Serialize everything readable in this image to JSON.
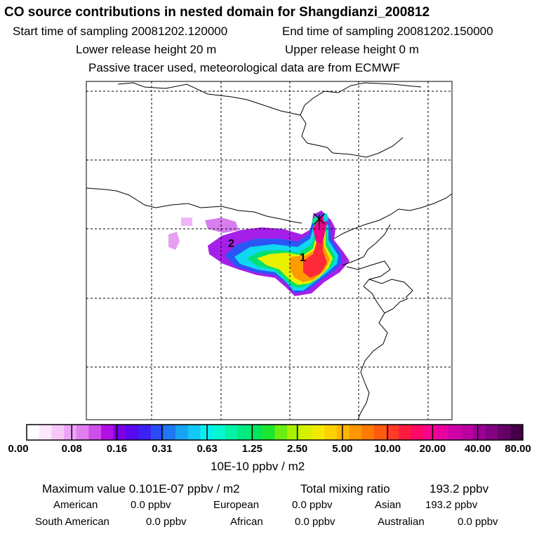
{
  "header": {
    "title": "CO  source contributions in nested domain for Shangdianzi_200812",
    "start_label": "Start time of sampling 20081202.120000",
    "end_label": "End time of sampling 20081202.150000",
    "lower_label": "Lower release height   20 m",
    "upper_label": "Upper release height    0 m",
    "tracer_note": "Passive tracer used, meteorological data are from ECMWF"
  },
  "map": {
    "markers": [
      "1",
      "2"
    ],
    "station_symbol": "x-cross-icon"
  },
  "colorbar": {
    "tick_labels": [
      "0.00",
      "0.08",
      "0.16",
      "0.31",
      "0.63",
      "1.25",
      "2.50",
      "5.00",
      "10.00",
      "20.00",
      "40.00",
      "80.00"
    ],
    "unit": "10E-10 ppbv / m2",
    "colors": [
      "#ffffff",
      "#fde8fd",
      "#f6c8f8",
      "#eda4f4",
      "#e07ef0",
      "#cf4de8",
      "#b20ee6",
      "#7a00e6",
      "#5a08f2",
      "#3c20f5",
      "#2b4cf5",
      "#1e78f5",
      "#18a4f5",
      "#12c8f5",
      "#08eef0",
      "#05f8cf",
      "#02f2a8",
      "#00eb80",
      "#00e55a",
      "#1ee52e",
      "#6aee10",
      "#a8f000",
      "#d6f000",
      "#f2e800",
      "#ffd000",
      "#ffb400",
      "#ff9600",
      "#ff7a00",
      "#ff5a10",
      "#ff3a28",
      "#ff1a40",
      "#ff0868",
      "#f8048a",
      "#e800a0",
      "#d000a8",
      "#b800a0",
      "#9e0096",
      "#820082",
      "#640066",
      "#46004a"
    ]
  },
  "footer": {
    "max_label": "Maximum value  0.101E-07 ppbv / m2",
    "total_label": "Total mixing ratio",
    "total_value": "193.2 ppbv",
    "regions": [
      {
        "name": "American",
        "value": "0.0 ppbv"
      },
      {
        "name": "European",
        "value": "0.0 ppbv"
      },
      {
        "name": "Asian",
        "value": "193.2 ppbv"
      },
      {
        "name": "South American",
        "value": "0.0 ppbv"
      },
      {
        "name": "African",
        "value": "0.0 ppbv"
      },
      {
        "name": "Australian",
        "value": "0.0 ppbv"
      }
    ]
  }
}
